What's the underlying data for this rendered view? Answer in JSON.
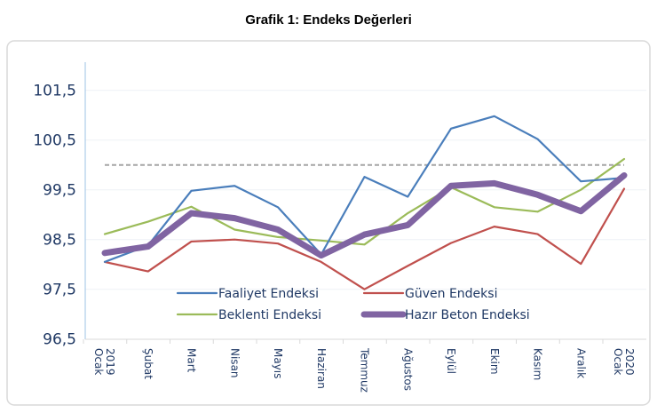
{
  "chart_data": {
    "type": "line",
    "title": "Grafik 1: Endeks Değerleri",
    "xlabel": "",
    "ylabel": "",
    "categories": [
      "Ocak 2019",
      "Şubat",
      "Mart",
      "Nisan",
      "Mayıs",
      "Haziran",
      "Temmuz",
      "Ağustos",
      "Eylül",
      "Ekim",
      "Kasım",
      "Aralık",
      "Ocak 2020"
    ],
    "yticks": [
      "96,5",
      "97,5",
      "98,5",
      "99,5",
      "100,5",
      "101,5"
    ],
    "ytick_values": [
      96.5,
      97.5,
      98.5,
      99.5,
      100.5,
      101.5
    ],
    "ylim": [
      96.5,
      102
    ],
    "grid": true,
    "reference_line": {
      "value": 100,
      "style": "dashed",
      "color": "#a6a6a6"
    },
    "legend_position": "bottom-center",
    "series": [
      {
        "name": "Faaliyet Endeksi",
        "color": "#4a7ebb",
        "values": [
          98.05,
          98.38,
          99.48,
          99.58,
          99.15,
          98.2,
          99.76,
          99.36,
          100.73,
          100.98,
          100.52,
          99.67,
          99.74
        ]
      },
      {
        "name": "Güven Endeksi",
        "color": "#c0504d",
        "values": [
          98.05,
          97.86,
          98.46,
          98.5,
          98.42,
          98.05,
          97.5,
          97.97,
          98.43,
          98.76,
          98.61,
          98.01,
          99.52
        ]
      },
      {
        "name": "Beklenti Endeksi",
        "color": "#9bbb59",
        "values": [
          98.61,
          98.86,
          99.16,
          98.7,
          98.55,
          98.48,
          98.4,
          99.03,
          99.55,
          99.15,
          99.06,
          99.5,
          100.12
        ]
      },
      {
        "name": "Hazır Beton Endeksi",
        "color": "#8064a2",
        "values": [
          98.23,
          98.36,
          99.03,
          98.93,
          98.7,
          98.18,
          98.6,
          98.79,
          99.58,
          99.63,
          99.4,
          99.07,
          99.79
        ]
      }
    ]
  }
}
